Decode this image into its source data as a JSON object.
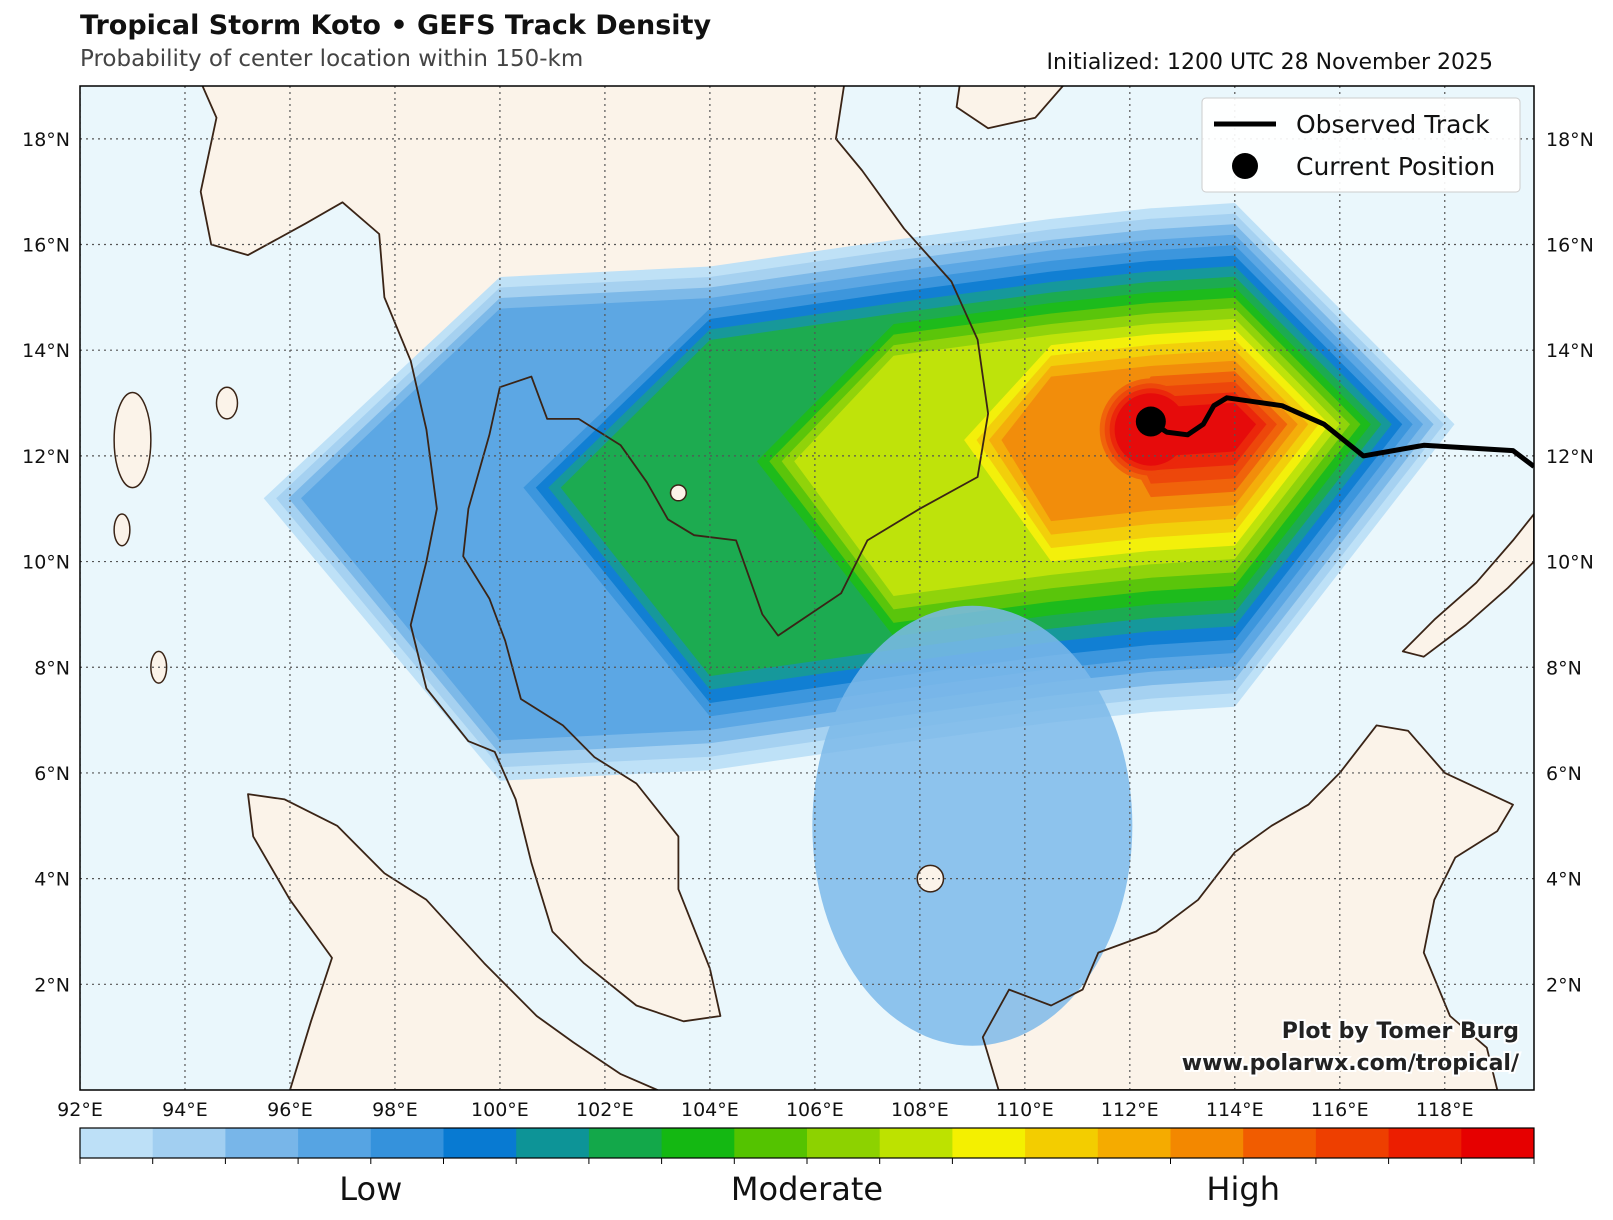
{
  "header": {
    "title": "Tropical Storm Koto • GEFS Track Density",
    "subtitle": "Probability of center location within 150-km",
    "initialized": "Initialized: 1200 UTC 28 November 2025"
  },
  "map": {
    "lon_range": [
      92,
      119.7
    ],
    "lat_range": [
      0,
      19
    ],
    "lat_ticks": [
      {
        "value": 18,
        "label": "18°N"
      },
      {
        "value": 16,
        "label": "16°N"
      },
      {
        "value": 14,
        "label": "14°N"
      },
      {
        "value": 12,
        "label": "12°N"
      },
      {
        "value": 10,
        "label": "10°N"
      },
      {
        "value": 8,
        "label": "8°N"
      },
      {
        "value": 6,
        "label": "6°N"
      },
      {
        "value": 4,
        "label": "4°N"
      },
      {
        "value": 2,
        "label": "2°N"
      }
    ],
    "lon_ticks": [
      {
        "value": 92,
        "label": "92°E"
      },
      {
        "value": 94,
        "label": "94°E"
      },
      {
        "value": 96,
        "label": "96°E"
      },
      {
        "value": 98,
        "label": "98°E"
      },
      {
        "value": 100,
        "label": "100°E"
      },
      {
        "value": 102,
        "label": "102°E"
      },
      {
        "value": 104,
        "label": "104°E"
      },
      {
        "value": 106,
        "label": "106°E"
      },
      {
        "value": 108,
        "label": "108°E"
      },
      {
        "value": 110,
        "label": "110°E"
      },
      {
        "value": 112,
        "label": "112°E"
      },
      {
        "value": 114,
        "label": "114°E"
      },
      {
        "value": 116,
        "label": "116°E"
      },
      {
        "value": 118,
        "label": "118°E"
      }
    ],
    "colors": {
      "ocean": "#eaf7fc",
      "land": "#fbf3e9",
      "coast": "#3a2416",
      "grid": "#555555",
      "track": "#000000"
    },
    "observed_track": [
      [
        112.4,
        12.65
      ],
      [
        112.7,
        12.45
      ],
      [
        113.1,
        12.4
      ],
      [
        113.4,
        12.6
      ],
      [
        113.6,
        12.95
      ],
      [
        113.85,
        13.1
      ],
      [
        114.9,
        12.95
      ],
      [
        115.7,
        12.6
      ],
      [
        116.45,
        12.0
      ],
      [
        117.6,
        12.2
      ],
      [
        119.3,
        12.1
      ],
      [
        119.7,
        11.8
      ]
    ],
    "current_position": [
      112.4,
      12.65
    ],
    "density_field": {
      "peak": [
        112.4,
        12.5
      ],
      "axis_points": [
        [
          100.0,
          11.2
        ],
        [
          104.0,
          11.4
        ],
        [
          107.5,
          11.9
        ],
        [
          110.5,
          12.3
        ],
        [
          112.4,
          12.5
        ],
        [
          114.0,
          12.6
        ]
      ]
    }
  },
  "legend": {
    "observed_label": "Observed Track",
    "current_label": "Current Position"
  },
  "credit": {
    "line1": "Plot by Tomer Burg",
    "line2": "www.polarwx.com/tropical/"
  },
  "colorbar": {
    "colors": [
      "#bde0f7",
      "#a2cff1",
      "#78b6e9",
      "#56a4e3",
      "#3592dc",
      "#087ad2",
      "#0d9497",
      "#13a84a",
      "#14b812",
      "#54c300",
      "#8dd200",
      "#bde200",
      "#f4f000",
      "#f3cd00",
      "#f5ab00",
      "#f38800",
      "#f15c00",
      "#ee3f00",
      "#ec1e00",
      "#e60000"
    ],
    "labels": [
      {
        "text": "Low",
        "pos": 0.2
      },
      {
        "text": "Moderate",
        "pos": 0.5
      },
      {
        "text": "High",
        "pos": 0.8
      }
    ]
  }
}
